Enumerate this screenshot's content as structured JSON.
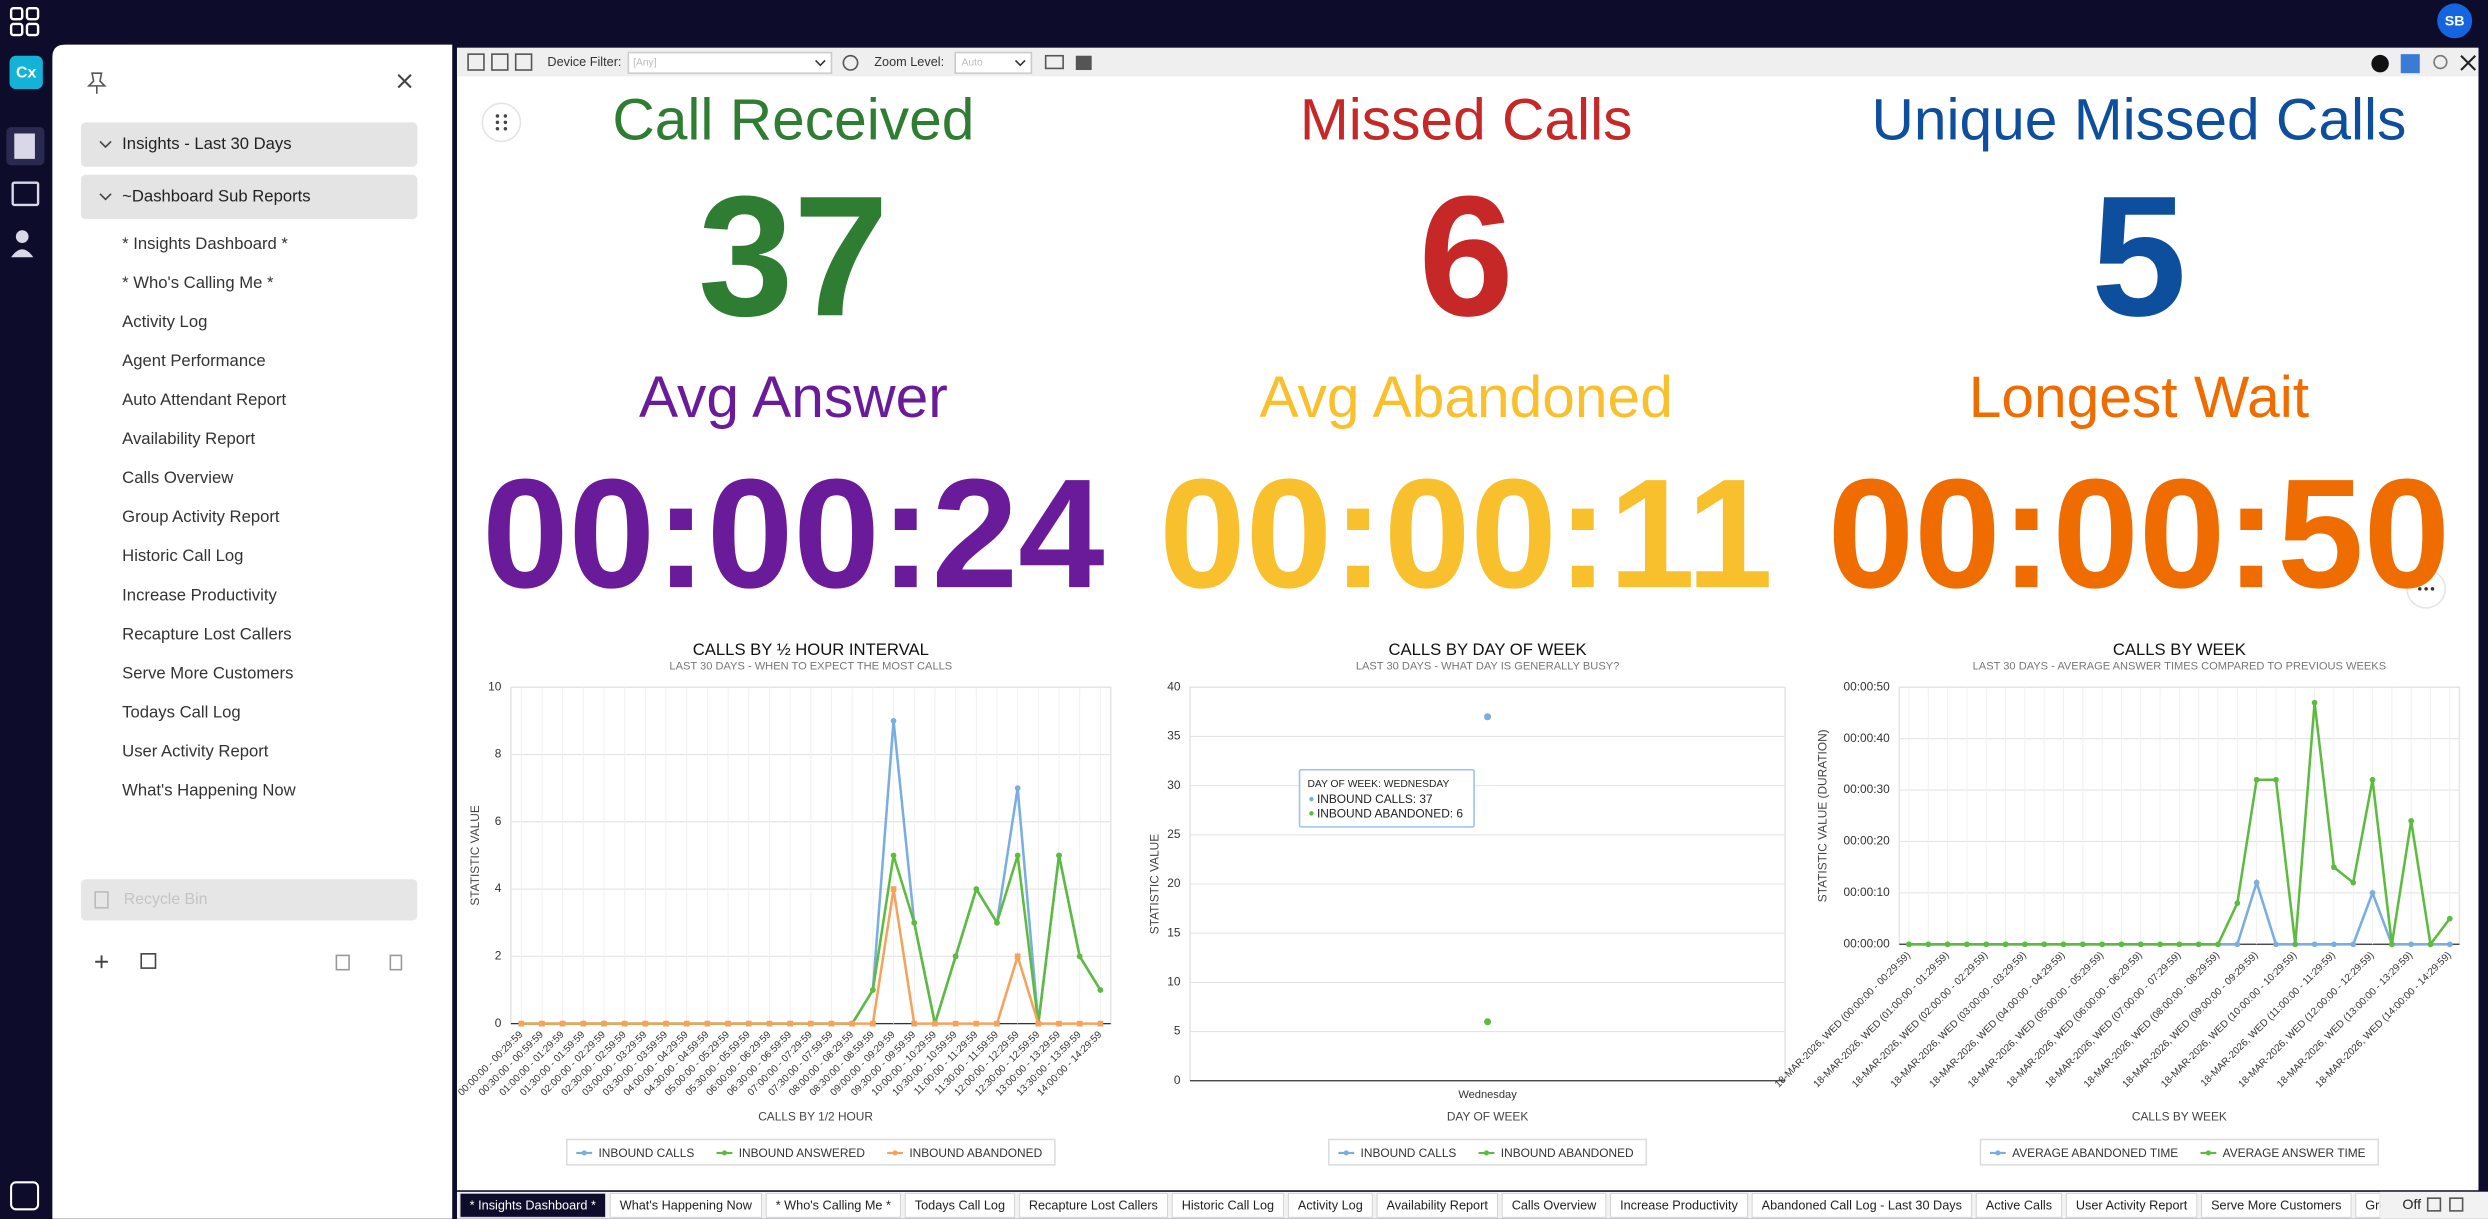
{
  "topbar": {
    "app_logo": "Cx",
    "avatar": "SB"
  },
  "toolbar": {
    "device_filter_label": "Device Filter:",
    "device_filter_value": "[Any]",
    "zoom_label": "Zoom Level:",
    "zoom_value": "Auto"
  },
  "sidebar": {
    "groups": [
      "Insights - Last 30 Days",
      "~Dashboard Sub Reports"
    ],
    "items": [
      "* Insights Dashboard *",
      "* Who's Calling Me *",
      "Activity Log",
      "Agent Performance",
      "Auto Attendant Report",
      "Availability Report",
      "Calls Overview",
      "Group Activity Report",
      "Historic Call Log",
      "Increase Productivity",
      "Recapture Lost Callers",
      "Serve More Customers",
      "Todays Call Log",
      "User Activity Report",
      "What's Happening Now"
    ],
    "recycle_bin": "Recycle Bin"
  },
  "kpis": [
    {
      "title": "Call Received",
      "value": 37,
      "color": "#2e7d32"
    },
    {
      "title": "Missed Calls",
      "value": 6,
      "color": "#c62828"
    },
    {
      "title": "Unique Missed Calls",
      "value": 5,
      "color": "#0d4f9c"
    },
    {
      "title": "Avg Answer",
      "value": "00:00:24",
      "color": "#6a1b9a"
    },
    {
      "title": "Avg Abandoned",
      "value": "00:00:11",
      "color": "#f9c02e"
    },
    {
      "title": "Longest Wait",
      "value": "00:00:50",
      "color": "#ef6c00"
    }
  ],
  "charts": [
    {
      "type": "line",
      "title": "CALLS BY ½ HOUR INTERVAL",
      "subtitle": "LAST 30 DAYS - WHEN TO EXPECT THE MOST CALLS",
      "x_label": "CALLS BY 1/2 HOUR",
      "y_label": "STATISTIC VALUE",
      "categories": [
        "00:00:00 - 00:29:59",
        "00:30:00 - 00:59:59",
        "01:00:00 - 01:29:59",
        "01:30:00 - 01:59:59",
        "02:00:00 - 02:29:59",
        "02:30:00 - 02:59:59",
        "03:00:00 - 03:29:59",
        "03:30:00 - 03:59:59",
        "04:00:00 - 04:29:59",
        "04:30:00 - 04:59:59",
        "05:00:00 - 05:29:59",
        "05:30:00 - 05:59:59",
        "06:00:00 - 06:29:59",
        "06:30:00 - 06:59:59",
        "07:00:00 - 07:29:59",
        "07:30:00 - 07:59:59",
        "08:00:00 - 08:29:59",
        "08:30:00 - 08:59:59",
        "09:00:00 - 09:29:59",
        "09:30:00 - 09:59:59",
        "10:00:00 - 10:29:59",
        "10:30:00 - 10:59:59",
        "11:00:00 - 11:29:59",
        "11:30:00 - 11:59:59",
        "12:00:00 - 12:29:59",
        "12:30:00 - 12:59:59",
        "13:00:00 - 13:29:59",
        "13:30:00 - 13:59:59",
        "14:00:00 - 14:29:59"
      ],
      "series": [
        {
          "name": "INBOUND CALLS",
          "color": "#7aaee0",
          "values": [
            0,
            0,
            0,
            0,
            0,
            0,
            0,
            0,
            0,
            0,
            0,
            0,
            0,
            0,
            0,
            0,
            0,
            1,
            9,
            3,
            0,
            2,
            4,
            3,
            7,
            0,
            5,
            2,
            1
          ]
        },
        {
          "name": "INBOUND ANSWERED",
          "color": "#5dbb3f",
          "values": [
            0,
            0,
            0,
            0,
            0,
            0,
            0,
            0,
            0,
            0,
            0,
            0,
            0,
            0,
            0,
            0,
            0,
            1,
            5,
            3,
            0,
            2,
            4,
            3,
            5,
            0,
            5,
            2,
            1
          ]
        },
        {
          "name": "INBOUND ABANDONED",
          "color": "#f5a25d",
          "values": [
            0,
            0,
            0,
            0,
            0,
            0,
            0,
            0,
            0,
            0,
            0,
            0,
            0,
            0,
            0,
            0,
            0,
            0,
            4,
            0,
            0,
            0,
            0,
            0,
            2,
            0,
            0,
            0,
            0
          ]
        }
      ],
      "ylim": [
        0,
        10
      ],
      "yticks": [
        0,
        2,
        4,
        6,
        8,
        10
      ],
      "grid": true
    },
    {
      "type": "scatter",
      "title": "CALLS BY DAY OF WEEK",
      "subtitle": "LAST 30 DAYS - WHAT DAY IS GENERALLY BUSY?",
      "x_label": "DAY OF WEEK",
      "y_label": "STATISTIC VALUE",
      "categories": [
        "Wednesday"
      ],
      "series": [
        {
          "name": "INBOUND CALLS",
          "color": "#7aaee0",
          "values": [
            37
          ]
        },
        {
          "name": "INBOUND ABANDONED",
          "color": "#5dbb3f",
          "values": [
            6
          ]
        }
      ],
      "ylim": [
        0,
        40
      ],
      "yticks": [
        0,
        5,
        10,
        15,
        20,
        25,
        30,
        35,
        40
      ],
      "grid": true,
      "tooltip": {
        "title": "DAY OF WEEK: WEDNESDAY",
        "lines": [
          "INBOUND CALLS: 37",
          "INBOUND ABANDONED: 6"
        ]
      }
    },
    {
      "type": "line",
      "title": "CALLS BY WEEK",
      "subtitle": "LAST 30 DAYS - AVERAGE ANSWER TIMES COMPARED TO PREVIOUS WEEKS",
      "x_label": "CALLS BY WEEK",
      "y_label": "STATISTIC VALUE (DURATION)",
      "categories": [
        "18-MAR-2026, WED (00:00:00 - 00:29:59)",
        null,
        "18-MAR-2026, WED (01:00:00 - 01:29:59)",
        null,
        "18-MAR-2026, WED (02:00:00 - 02:29:59)",
        null,
        "18-MAR-2026, WED (03:00:00 - 03:29:59)",
        null,
        "18-MAR-2026, WED (04:00:00 - 04:29:59)",
        null,
        "18-MAR-2026, WED (05:00:00 - 05:29:59)",
        null,
        "18-MAR-2026, WED (06:00:00 - 06:29:59)",
        null,
        "18-MAR-2026, WED (07:00:00 - 07:29:59)",
        null,
        "18-MAR-2026, WED (08:00:00 - 08:29:59)",
        null,
        "18-MAR-2026, WED (09:00:00 - 09:29:59)",
        null,
        "18-MAR-2026, WED (10:00:00 - 10:29:59)",
        null,
        "18-MAR-2026, WED (11:00:00 - 11:29:59)",
        null,
        "18-MAR-2026, WED (12:00:00 - 12:29:59)",
        null,
        "18-MAR-2026, WED (13:00:00 - 13:29:59)",
        null,
        "18-MAR-2026, WED (14:00:00 - 14:29:59)"
      ],
      "series": [
        {
          "name": "AVERAGE ABANDONED TIME",
          "color": "#7aaee0",
          "values": [
            0,
            0,
            0,
            0,
            0,
            0,
            0,
            0,
            0,
            0,
            0,
            0,
            0,
            0,
            0,
            0,
            0,
            0,
            12,
            0,
            0,
            0,
            0,
            0,
            10,
            0,
            0,
            0,
            0
          ]
        },
        {
          "name": "AVERAGE ANSWER TIME",
          "color": "#5dbb3f",
          "values": [
            0,
            0,
            0,
            0,
            0,
            0,
            0,
            0,
            0,
            0,
            0,
            0,
            0,
            0,
            0,
            0,
            0,
            8,
            32,
            32,
            0,
            47,
            15,
            12,
            32,
            0,
            24,
            0,
            5
          ]
        }
      ],
      "ylim": [
        0,
        50
      ],
      "yticks": [
        {
          "value": 0,
          "label": "00:00:00"
        },
        {
          "value": 10,
          "label": "00:00:10"
        },
        {
          "value": 20,
          "label": "00:00:20"
        },
        {
          "value": 30,
          "label": "00:00:30"
        },
        {
          "value": 40,
          "label": "00:00:40"
        },
        {
          "value": 50,
          "label": "00:00:50"
        }
      ],
      "grid": true
    }
  ],
  "tabs": [
    "* Insights Dashboard *",
    "What's Happening Now",
    "* Who's Calling Me *",
    "Todays Call Log",
    "Recapture Lost Callers",
    "Historic Call Log",
    "Activity Log",
    "Availability Report",
    "Calls Overview",
    "Increase Productivity",
    "Abandoned Call Log - Last 30 Days",
    "Active Calls",
    "User Activity Report",
    "Serve More Customers",
    "Group Acti"
  ],
  "status": "Off"
}
